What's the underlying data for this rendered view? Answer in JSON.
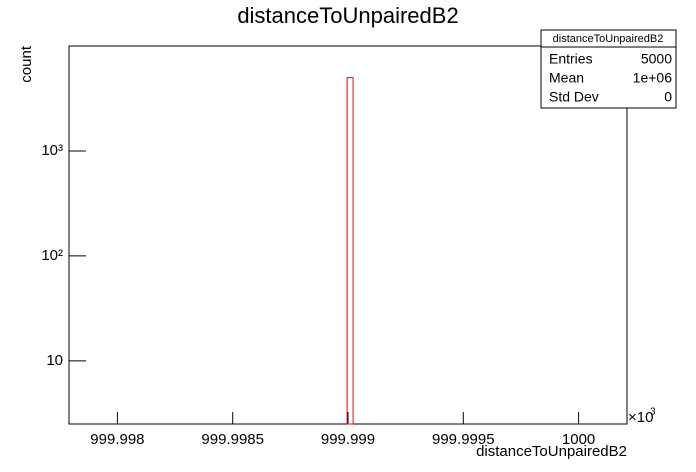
{
  "chart_data": {
    "type": "histogram",
    "title": "distanceToUnpairedB2",
    "x_label": "distanceToUnpairedB2",
    "y_label": "count",
    "bins": [
      999.998996,
      999.999022
    ],
    "counts": [
      5000
    ],
    "color": "#ff0000",
    "xlim": [
      999.99779,
      1000.00021
    ],
    "xticks": [
      999.998,
      999.9985,
      999.999,
      999.9995,
      1000
    ],
    "x_multiplier": "×10",
    "x_multiplier_exponent": "3",
    "ylim": [
      2.5,
      10000
    ],
    "log_y": true,
    "yticks": [
      10,
      {
        "value": 100,
        "label": "10²"
      },
      {
        "value": 1000,
        "label": "10³"
      }
    ],
    "stats": {
      "title": "distanceToUnpairedB2",
      "rows": [
        [
          "Entries",
          "5000"
        ],
        [
          "Mean",
          "1e+06"
        ],
        [
          "Std Dev",
          "0"
        ]
      ]
    }
  }
}
